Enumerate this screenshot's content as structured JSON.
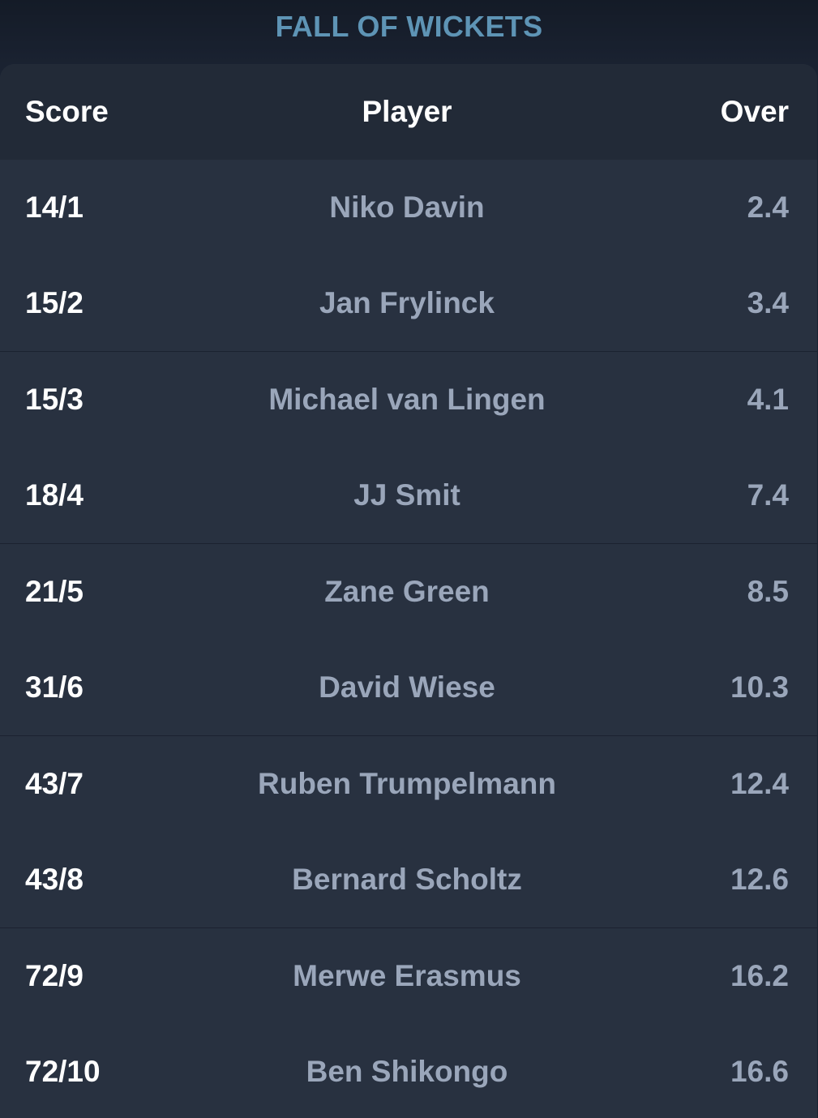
{
  "section": {
    "title": "FALL OF WICKETS"
  },
  "table": {
    "headers": {
      "score": "Score",
      "player": "Player",
      "over": "Over"
    },
    "rows": [
      {
        "score": "14/1",
        "player": "Niko Davin",
        "over": "2.4"
      },
      {
        "score": "15/2",
        "player": "Jan Frylinck",
        "over": "3.4"
      },
      {
        "score": "15/3",
        "player": "Michael van Lingen",
        "over": "4.1"
      },
      {
        "score": "18/4",
        "player": "JJ Smit",
        "over": "7.4"
      },
      {
        "score": "21/5",
        "player": "Zane Green",
        "over": "8.5"
      },
      {
        "score": "31/6",
        "player": "David Wiese",
        "over": "10.3"
      },
      {
        "score": "43/7",
        "player": "Ruben Trumpelmann",
        "over": "12.4"
      },
      {
        "score": "43/8",
        "player": "Bernard Scholtz",
        "over": "12.6"
      },
      {
        "score": "72/9",
        "player": "Merwe Erasmus",
        "over": "16.2"
      },
      {
        "score": "72/10",
        "player": "Ben Shikongo",
        "over": "16.6"
      }
    ]
  },
  "colors": {
    "title": "#5e94b5",
    "background": "#1a2231",
    "card": "#283140",
    "header": "#222a37",
    "score_text": "#ffffff",
    "muted_text": "#9aa6ba"
  }
}
